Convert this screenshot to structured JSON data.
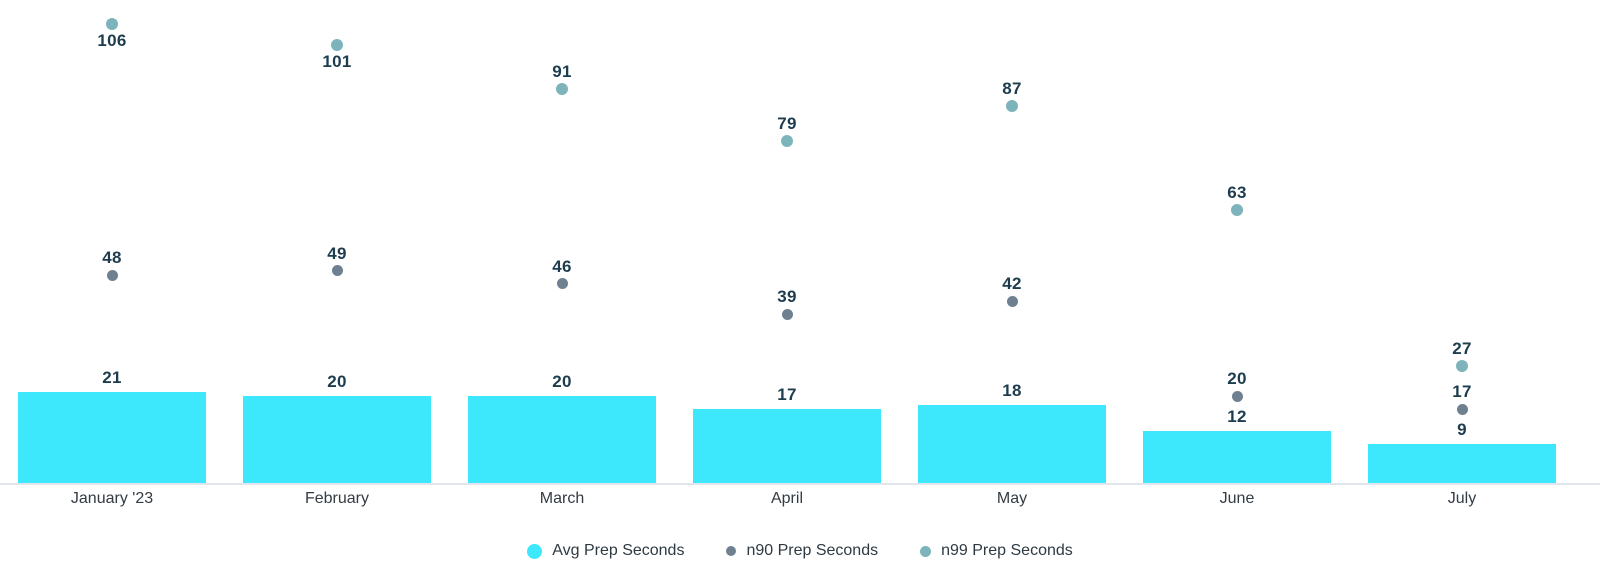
{
  "chart_data": {
    "type": "bar",
    "title": "",
    "xlabel": "",
    "ylabel": "",
    "categories": [
      "January '23",
      "February",
      "March",
      "April",
      "May",
      "June",
      "July"
    ],
    "series": [
      {
        "name": "Avg Prep Seconds",
        "kind": "bar",
        "color": "#3de8fd",
        "legend_marker_size": 15,
        "values": [
          21,
          20,
          20,
          17,
          18,
          12,
          9
        ]
      },
      {
        "name": "n90 Prep Seconds",
        "kind": "scatter",
        "color": "#6f8191",
        "marker_size": 11,
        "legend_marker_size": 10,
        "values": [
          48,
          49,
          46,
          39,
          42,
          20,
          17
        ],
        "label_below": [
          false,
          false,
          false,
          false,
          false,
          false,
          false
        ]
      },
      {
        "name": "n99 Prep Seconds",
        "kind": "scatter",
        "color": "#7db4bb",
        "marker_size": 12,
        "legend_marker_size": 11,
        "values": [
          106,
          101,
          91,
          79,
          87,
          63,
          27
        ],
        "label_below": [
          true,
          true,
          false,
          false,
          false,
          false,
          false
        ]
      }
    ],
    "ylim": [
      0,
      111.5
    ],
    "grid": false,
    "data_labels": true,
    "legend_position": "bottom",
    "colors": {
      "value_label": "#1d3d4f",
      "axis_label": "#333b43",
      "axis_line": "#e2e5eb",
      "background": "#ffffff"
    }
  }
}
